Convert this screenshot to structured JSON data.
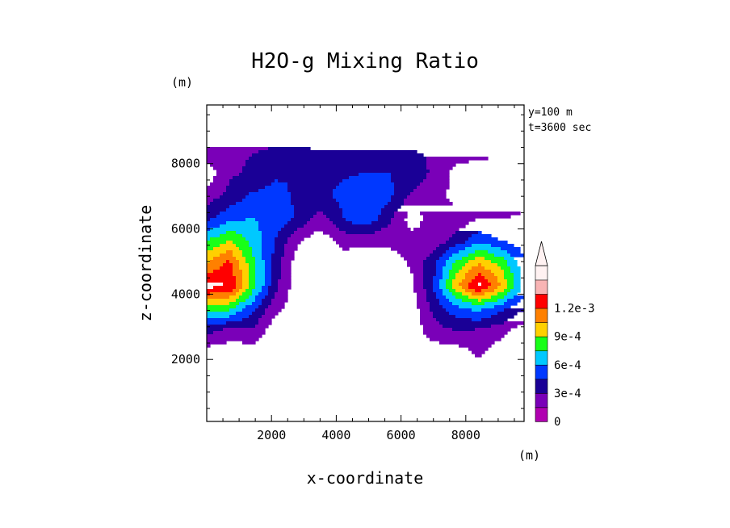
{
  "chart_data": {
    "type": "heatmap",
    "subtype": "filled-contour",
    "title": "H2O-g Mixing Ratio",
    "xlabel": "x-coordinate",
    "ylabel": "z-coordinate",
    "x_unit": "(m)",
    "y_unit": "(m)",
    "xlim": [
      0,
      9800
    ],
    "ylim": [
      100,
      9800
    ],
    "x_ticks": [
      2000,
      4000,
      6000,
      8000
    ],
    "y_ticks": [
      2000,
      4000,
      6000,
      8000
    ],
    "annotations": [
      "y=100 m",
      "t=3600 sec"
    ],
    "colorbar": {
      "labels": [
        "0",
        "3e-4",
        "6e-4",
        "9e-4",
        "1.2e-3"
      ],
      "label_values": [
        0,
        0.0003,
        0.0006,
        0.0009,
        0.0012
      ],
      "levels": [
        0,
        0.00015,
        0.0003,
        0.00045,
        0.0006,
        0.00075,
        0.0009,
        0.00105,
        0.0012
      ],
      "colors": [
        "#b000b0",
        "#7a00b8",
        "#1a0096",
        "#0038ff",
        "#00c8ff",
        "#18ff18",
        "#ffd000",
        "#ff8000",
        "#ff0000",
        "#f8b4b4",
        "#fff2f2"
      ],
      "extend": "max"
    },
    "x": [
      0,
      700,
      1400,
      2100,
      2800,
      3500,
      4200,
      4900,
      5600,
      6300,
      7000,
      7700,
      8400,
      9100,
      9800
    ],
    "y": [
      9800,
      9100,
      8400,
      7700,
      7000,
      6300,
      5600,
      4900,
      4200,
      3500,
      2800,
      2100,
      1400,
      700,
      100
    ],
    "z_scale": 0.0001,
    "z": [
      [
        0.5,
        0.5,
        0.5,
        0.5,
        0.5,
        0.5,
        0.5,
        0.5,
        0.5,
        0.5,
        0.5,
        0.5,
        0.5,
        0.5,
        0.5
      ],
      [
        0.9,
        1.0,
        1.0,
        1.0,
        0.9,
        0.9,
        0.9,
        0.9,
        0.9,
        0.9,
        0.9,
        0.8,
        0.7,
        0.7,
        1.0
      ],
      [
        1.0,
        1.2,
        1.4,
        1.6,
        1.6,
        1.5,
        1.5,
        1.5,
        1.5,
        1.5,
        1.3,
        0.9,
        0.6,
        0.5,
        0.7
      ],
      [
        -1.0,
        1.2,
        1.8,
        2.8,
        3.0,
        2.4,
        2.8,
        3.0,
        3.0,
        2.6,
        1.2,
        -0.5,
        -1.0,
        -1.0,
        -0.5
      ],
      [
        0.6,
        2.0,
        3.2,
        3.4,
        2.8,
        2.6,
        3.4,
        4.0,
        3.5,
        1.4,
        0.6,
        -0.5,
        -1.0,
        -1.0,
        0.6
      ],
      [
        2.5,
        4.0,
        4.5,
        4.0,
        2.8,
        0.8,
        3.0,
        4.5,
        2.0,
        -0.8,
        0.6,
        0.5,
        1.5,
        1.4,
        2.0
      ],
      [
        6.0,
        7.5,
        5.5,
        3.0,
        0.2,
        -1.0,
        0.6,
        0.4,
        0.4,
        0.6,
        0.6,
        2.0,
        4.0,
        3.0,
        2.0
      ],
      [
        9.0,
        11.0,
        6.5,
        2.5,
        -1.0,
        -1.0,
        -1.0,
        -1.0,
        -1.0,
        0.2,
        2.5,
        6.5,
        9.0,
        7.0,
        3.5
      ],
      [
        12.5,
        12.0,
        7.0,
        2.0,
        -1.0,
        -1.0,
        -1.0,
        -1.0,
        -1.0,
        -0.5,
        3.0,
        8.5,
        12.5,
        9.0,
        4.0
      ],
      [
        7.0,
        6.5,
        3.5,
        0.5,
        -1.0,
        -1.0,
        -1.0,
        -1.0,
        -1.0,
        -1.0,
        2.0,
        4.0,
        5.0,
        3.5,
        1.5
      ],
      [
        2.0,
        0.8,
        1.2,
        -1.0,
        -1.0,
        -1.0,
        -1.0,
        -1.0,
        -1.0,
        -1.0,
        0.8,
        1.5,
        1.2,
        0.5,
        -1.0
      ],
      [
        -1.0,
        -1.0,
        -1.0,
        -1.0,
        -1.0,
        -1.0,
        -1.0,
        -1.0,
        -1.0,
        -1.0,
        -1.0,
        -1.0,
        0.3,
        -1.0,
        -1.0
      ],
      [
        -1.0,
        -1.0,
        -1.0,
        -1.0,
        -1.0,
        -1.0,
        -1.0,
        -1.0,
        -1.0,
        -1.0,
        -1.0,
        -1.0,
        -1.0,
        -1.0,
        -1.0
      ],
      [
        -1.0,
        -1.0,
        -1.0,
        -1.0,
        -1.0,
        -1.0,
        -1.0,
        -1.0,
        -1.0,
        -1.0,
        -1.0,
        -1.0,
        -1.0,
        -1.0,
        -1.0
      ],
      [
        -1.0,
        -1.0,
        -1.0,
        -1.0,
        -1.0,
        -1.0,
        -1.0,
        -1.0,
        -1.0,
        -1.0,
        -1.0,
        -1.0,
        -1.0,
        -1.0,
        -1.0
      ]
    ]
  }
}
